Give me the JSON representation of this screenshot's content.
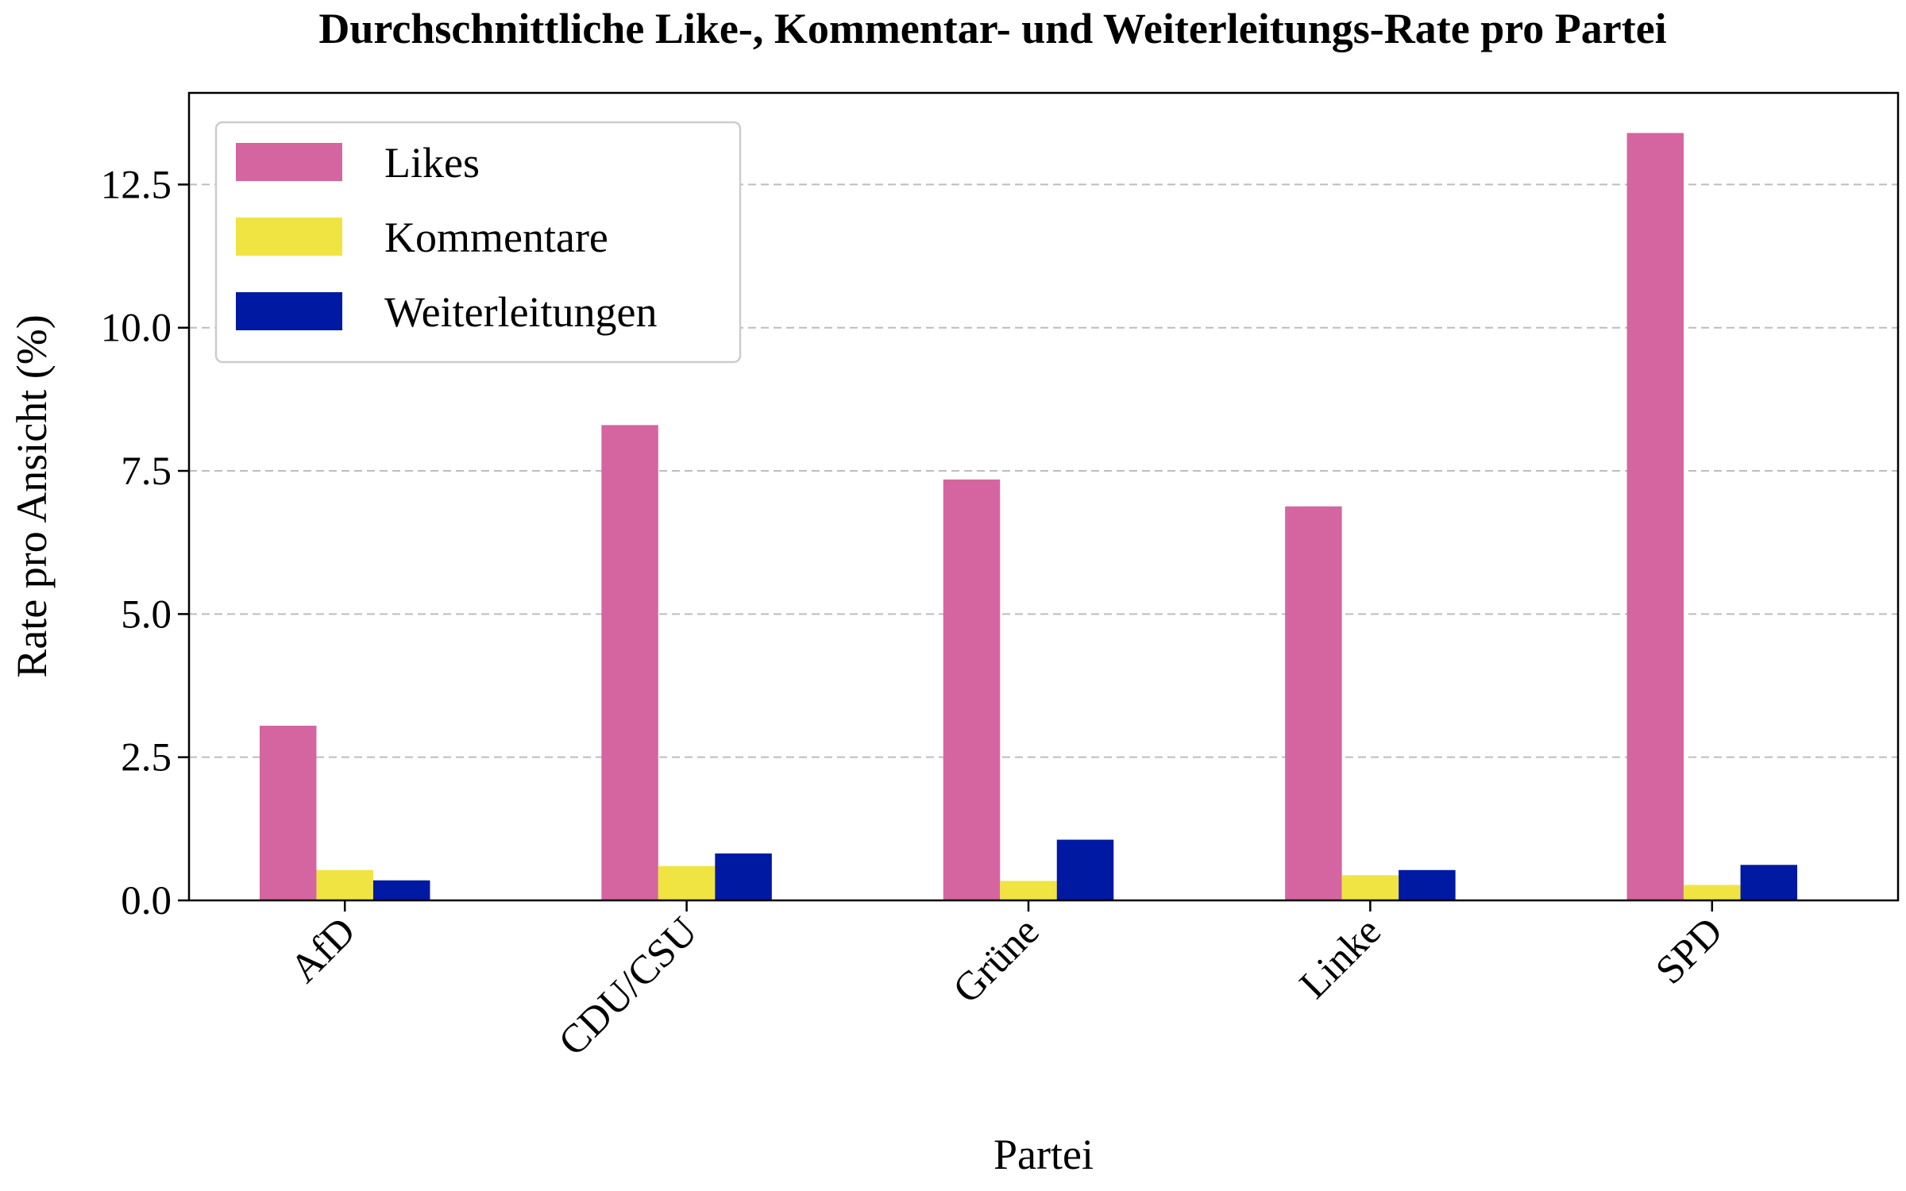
{
  "chart_data": {
    "type": "bar",
    "title": "Durchschnittliche Like-, Kommentar- und Weiterleitungs-Rate pro Partei",
    "xlabel": "Partei",
    "ylabel": "Rate pro Ansicht (%)",
    "categories": [
      "AfD",
      "CDU/CSU",
      "Grüne",
      "Linke",
      "SPD"
    ],
    "series": [
      {
        "name": "Likes",
        "color": "#d565a1",
        "values": [
          3.05,
          8.3,
          7.35,
          6.88,
          13.4
        ]
      },
      {
        "name": "Kommentare",
        "color": "#f0e442",
        "values": [
          0.53,
          0.6,
          0.34,
          0.44,
          0.27
        ]
      },
      {
        "name": "Weiterleitungen",
        "color": "#0019a3",
        "values": [
          0.35,
          0.82,
          1.06,
          0.53,
          0.62
        ]
      }
    ],
    "ylim": [
      0,
      14.1
    ],
    "yticks": [
      "0.0",
      "2.5",
      "5.0",
      "7.5",
      "10.0",
      "12.5"
    ],
    "grid": "y, dashed",
    "legend_position": "top-left"
  }
}
